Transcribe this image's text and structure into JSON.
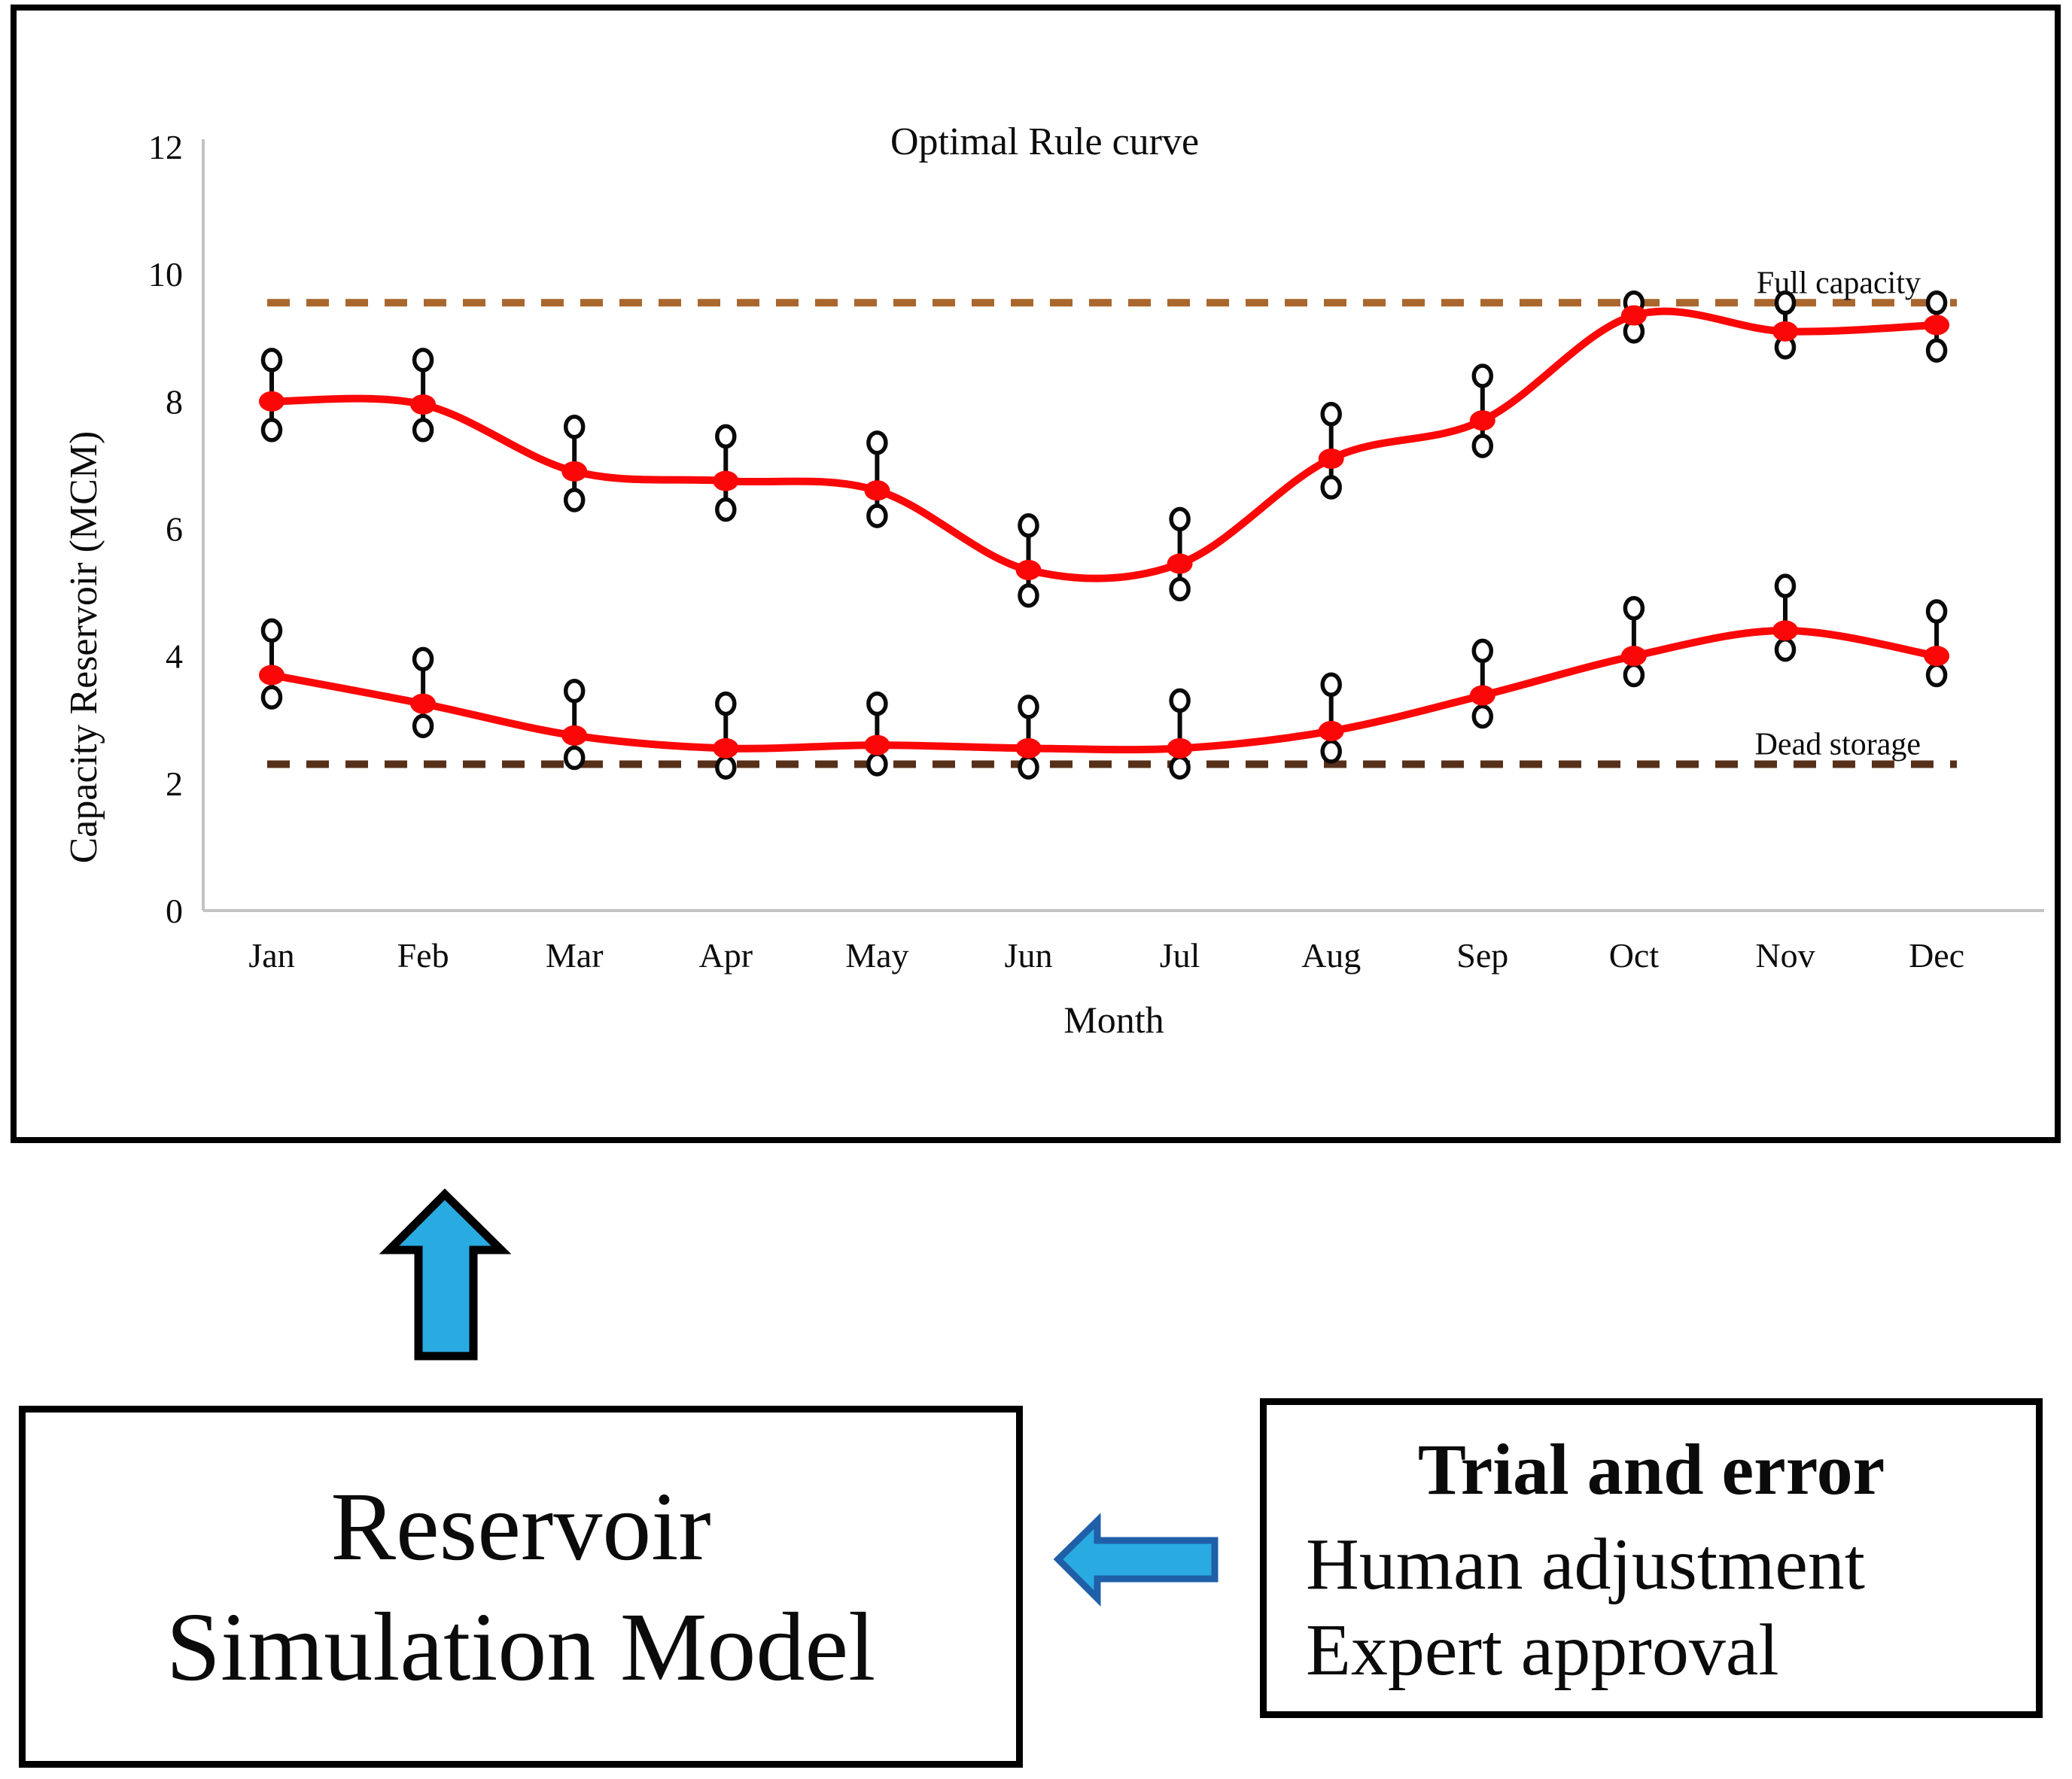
{
  "window": {
    "background": "#ffffff"
  },
  "chart_data": {
    "type": "line",
    "title": "Optimal Rule curve",
    "xlabel": "Month",
    "ylabel": "Capacity Reservoir (MCM)",
    "ylim": [
      0,
      12
    ],
    "yticks": [
      0,
      2,
      4,
      6,
      8,
      10,
      12
    ],
    "categories": [
      "Jan",
      "Feb",
      "Mar",
      "Apr",
      "May",
      "Jun",
      "Jul",
      "Aug",
      "Sep",
      "Oct",
      "Nov",
      "Dec"
    ],
    "series": [
      {
        "name": "upper-rule-curve",
        "color": "#fb0707",
        "values": [
          8.0,
          7.95,
          6.9,
          6.75,
          6.6,
          5.35,
          5.45,
          7.1,
          7.7,
          9.35,
          9.1,
          9.2
        ],
        "err_high": [
          8.65,
          8.65,
          7.6,
          7.45,
          7.35,
          6.05,
          6.15,
          7.8,
          8.4,
          9.55,
          9.55,
          9.55
        ],
        "err_low": [
          7.55,
          7.55,
          6.45,
          6.3,
          6.2,
          4.95,
          5.05,
          6.65,
          7.3,
          9.1,
          8.85,
          8.8
        ]
      },
      {
        "name": "lower-rule-curve",
        "color": "#fb0707",
        "values": [
          3.7,
          3.25,
          2.75,
          2.55,
          2.6,
          2.55,
          2.55,
          2.82,
          3.38,
          4.0,
          4.4,
          4.0
        ],
        "err_high": [
          4.4,
          3.95,
          3.45,
          3.25,
          3.25,
          3.2,
          3.3,
          3.55,
          4.08,
          4.75,
          5.1,
          4.7
        ],
        "err_low": [
          3.35,
          2.9,
          2.4,
          2.25,
          2.3,
          2.25,
          2.25,
          2.5,
          3.05,
          3.7,
          4.1,
          3.7
        ]
      }
    ],
    "reference_lines": [
      {
        "name": "full-capacity",
        "label": "Full capacity",
        "value": 9.55,
        "color": "#a9672e"
      },
      {
        "name": "dead-storage",
        "label": "Dead storage",
        "value": 2.3,
        "color": "#57301a"
      }
    ],
    "grid": false,
    "legend_position": "none",
    "marker_style": "red filled point with open-circle error-bar caps",
    "error_bar_color": "#0a0a0a",
    "axis_color": "#c3c3c3"
  },
  "flow": {
    "reservoir_box": {
      "line1": "Reservoir",
      "line2": "Simulation Model"
    },
    "trial_box": {
      "title": "Trial and error",
      "items": [
        "Human adjustment",
        "Expert approval"
      ]
    },
    "arrow_fill": "#29abe2",
    "up_arrow_outline": "#000000",
    "left_arrow_outline": "#1f5fa8"
  }
}
